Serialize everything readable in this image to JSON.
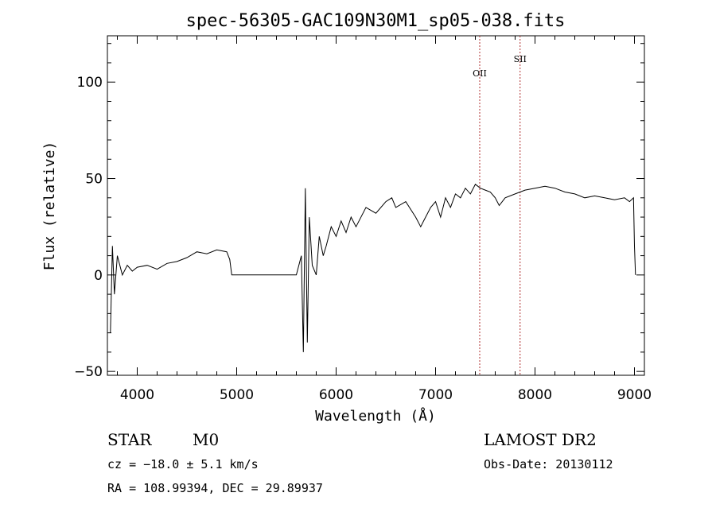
{
  "chart_data": {
    "type": "line",
    "title": "spec-56305-GAC109N30M1_sp05-038.fits",
    "xlabel": "Wavelength (Å)",
    "ylabel": "Flux (relative)",
    "xlim": [
      3700,
      9100
    ],
    "ylim": [
      -52,
      124
    ],
    "x_ticks": [
      4000,
      5000,
      6000,
      7000,
      8000,
      9000
    ],
    "y_ticks": [
      -50,
      0,
      50,
      100
    ],
    "grid": false,
    "series": [
      {
        "x": [
          3730,
          3750,
          3770,
          3800,
          3850,
          3900,
          3950,
          4000,
          4100,
          4200,
          4300,
          4400,
          4500,
          4600,
          4700,
          4800,
          4900,
          4930,
          4950,
          5000,
          5200,
          5400,
          5600,
          5650,
          5670,
          5690,
          5710,
          5730,
          5760,
          5800,
          5830,
          5870,
          5900,
          5950,
          6000,
          6050,
          6100,
          6150,
          6200,
          6300,
          6400,
          6500,
          6560,
          6600,
          6700,
          6800,
          6850,
          6880,
          6950,
          7000,
          7050,
          7100,
          7150,
          7200,
          7250,
          7300,
          7350,
          7400,
          7450,
          7500,
          7550,
          7600,
          7640,
          7700,
          7800,
          7900,
          8000,
          8100,
          8200,
          8300,
          8400,
          8500,
          8600,
          8700,
          8800,
          8900,
          8950,
          8990,
          9000,
          9010
        ],
        "y": [
          -30,
          15,
          -10,
          10,
          0,
          5,
          2,
          4,
          5,
          3,
          6,
          7,
          9,
          12,
          11,
          13,
          12,
          8,
          0,
          0,
          0,
          0,
          0,
          10,
          -40,
          45,
          -35,
          30,
          5,
          0,
          20,
          10,
          15,
          25,
          20,
          28,
          22,
          30,
          25,
          35,
          32,
          38,
          40,
          35,
          38,
          30,
          25,
          28,
          35,
          38,
          30,
          40,
          35,
          42,
          40,
          45,
          42,
          47,
          45,
          44,
          43,
          40,
          36,
          40,
          42,
          44,
          45,
          46,
          45,
          43,
          42,
          40,
          41,
          40,
          39,
          40,
          38,
          40,
          15,
          0
        ]
      }
    ],
    "annotations": [
      {
        "label": "OII",
        "wavelength": 7444
      },
      {
        "label": "SII",
        "wavelength": 7850
      }
    ]
  },
  "info": {
    "object_class": "STAR",
    "subclass": "M0",
    "survey": "LAMOST DR2",
    "redshift_line": "cz = −18.0 ± 5.1 km/s",
    "obs_date": "Obs-Date: 20130112",
    "coords": "RA = 108.99394, DEC =  29.89937"
  }
}
